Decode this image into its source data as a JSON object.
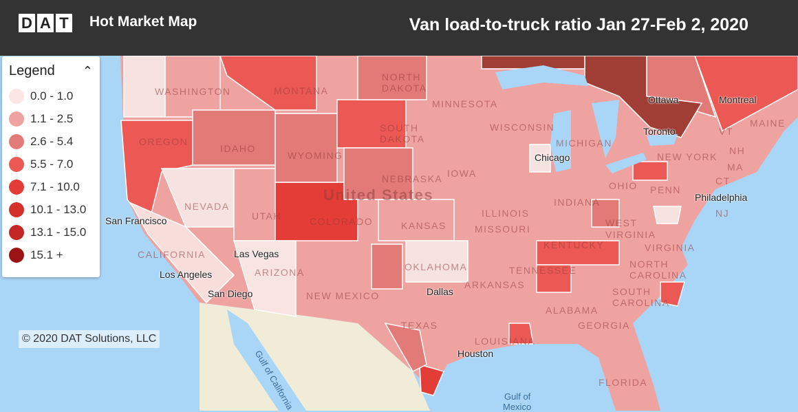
{
  "header": {
    "logo_letters": [
      "D",
      "A",
      "T"
    ],
    "app_title": "Hot Market Map",
    "map_title": "Van load-to-truck ratio  Jan 27-Feb 2, 2020"
  },
  "legend": {
    "title": "Legend",
    "collapse_icon": "chevron-up-icon",
    "items": [
      {
        "label": "0.0 - 1.0",
        "color": "#fbe5e5"
      },
      {
        "label": "1.1 - 2.5",
        "color": "#efa3a0"
      },
      {
        "label": "2.6 - 5.4",
        "color": "#e27b78"
      },
      {
        "label": "5.5 - 7.0",
        "color": "#ec5954"
      },
      {
        "label": "7.1 - 10.0",
        "color": "#e43c36"
      },
      {
        "label": "10.1 - 13.0",
        "color": "#d3302c"
      },
      {
        "label": "13.1 - 15.0",
        "color": "#c32826"
      },
      {
        "label": "15.1 +",
        "color": "#9c1314"
      }
    ]
  },
  "labels": {
    "states": [
      "WASHINGTON",
      "OREGON",
      "IDAHO",
      "MONTANA",
      "WYOMING",
      "NORTH",
      "DAKOTA",
      "SOUTH",
      "DAKOTA",
      "NEBRASKA",
      "NEVADA",
      "UTAH",
      "COLORADO",
      "KANSAS",
      "CALIFORNIA",
      "ARIZONA",
      "NEW MEXICO",
      "OKLAHOMA",
      "TEXAS",
      "MINNESOTA",
      "IOWA",
      "WISCONSIN",
      "MICHIGAN",
      "ILLINOIS",
      "INDIANA",
      "OHIO",
      "MISSOURI",
      "KENTUCKY",
      "TENNESSEE",
      "ARKANSAS",
      "LOUISIANA",
      "ALABAMA",
      "GEORGIA",
      "SOUTH",
      "CAROLINA",
      "NORTH",
      "CAROLINA",
      "VIRGINIA",
      "WEST",
      "VIRGINIA",
      "PENN",
      "NEW YORK",
      "VT",
      "NH",
      "MA",
      "CT",
      "NJ",
      "MAINE",
      "FLORIDA",
      "United States"
    ],
    "cities": [
      "San Francisco",
      "Los Angeles",
      "San Diego",
      "Las Vegas",
      "Chicago",
      "Dallas",
      "Houston",
      "Toronto",
      "Ottawa",
      "Montreal",
      "Philadelphia"
    ],
    "water": [
      "Gulf of California",
      "Gulf of",
      "Mexico"
    ]
  },
  "copyright": "© 2020 DAT Solutions, LLC"
}
